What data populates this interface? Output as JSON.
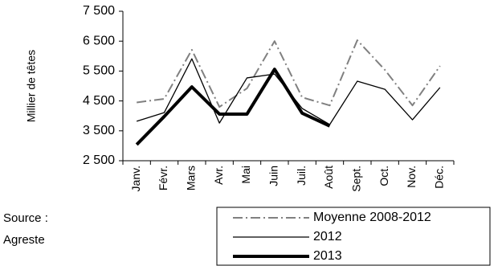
{
  "chart_data": {
    "type": "line",
    "y_label": "Millier de têtes",
    "categories": [
      "Janv.",
      "Févr.",
      "Mars",
      "Avr.",
      "Mai",
      "Juin",
      "Juil.",
      "Août",
      "Sept.",
      "Oct.",
      "Nov.",
      "Déc."
    ],
    "ylim": [
      2500,
      7500
    ],
    "yticks": [
      {
        "value": 2500,
        "label": "2 500"
      },
      {
        "value": 3500,
        "label": "3 500"
      },
      {
        "value": 4500,
        "label": "4 500"
      },
      {
        "value": 5500,
        "label": "5 500"
      },
      {
        "value": 6500,
        "label": "6 500"
      },
      {
        "value": 7500,
        "label": "7 500"
      }
    ],
    "series": [
      {
        "name": "Moyenne 2008-2012",
        "color": "#808080",
        "style": "dashdot",
        "width": 2,
        "values": [
          4450,
          4570,
          6210,
          4300,
          4920,
          6500,
          4620,
          4350,
          6530,
          5540,
          4350,
          5670
        ]
      },
      {
        "name": "2012",
        "color": "#000000",
        "style": "solid",
        "width": 1.3,
        "values": [
          3820,
          4110,
          5910,
          3760,
          5270,
          5400,
          4250,
          3710,
          5160,
          4890,
          3870,
          4950
        ]
      },
      {
        "name": "2013",
        "color": "#000000",
        "style": "solid",
        "width": 4,
        "values": [
          3040,
          3980,
          4970,
          4060,
          4060,
          5560,
          4090,
          3660,
          null,
          null,
          null,
          null
        ]
      }
    ],
    "source": [
      "Source :",
      "Agreste"
    ]
  }
}
